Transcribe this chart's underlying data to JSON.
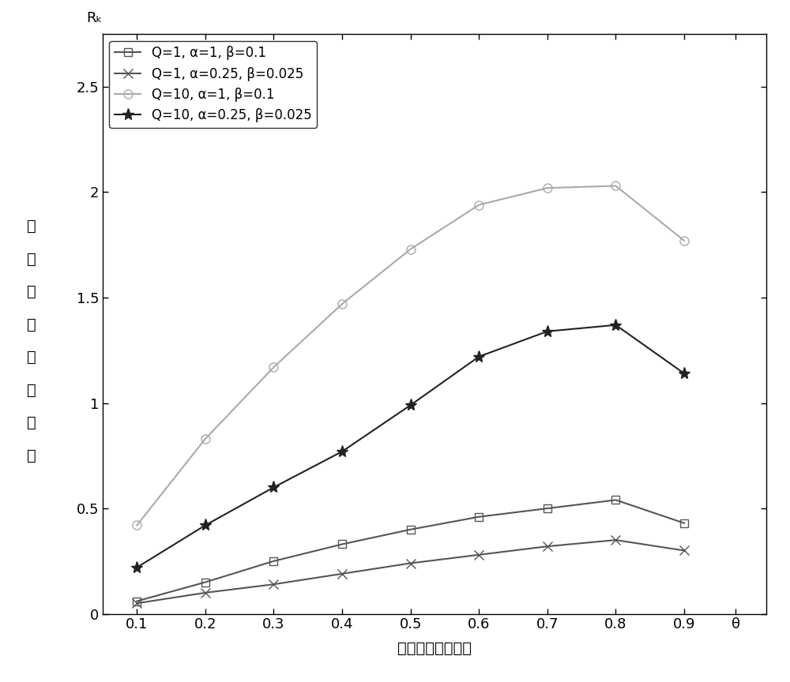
{
  "x": [
    0.1,
    0.2,
    0.3,
    0.4,
    0.5,
    0.6,
    0.7,
    0.8,
    0.9
  ],
  "series": [
    {
      "label": "Q=1, α=1, β=0.1",
      "y": [
        0.06,
        0.15,
        0.25,
        0.33,
        0.4,
        0.46,
        0.5,
        0.54,
        0.43
      ],
      "color": "#555555",
      "marker": "s",
      "markersize": 7,
      "markerfacecolor": "none",
      "markeredgecolor": "#555555",
      "linewidth": 1.5,
      "linestyle": "-"
    },
    {
      "label": "Q=1, α=0.25, β=0.025",
      "y": [
        0.05,
        0.1,
        0.14,
        0.19,
        0.24,
        0.28,
        0.32,
        0.35,
        0.3
      ],
      "color": "#555555",
      "marker": "x",
      "markersize": 8,
      "markerfacecolor": "none",
      "markeredgecolor": "#555555",
      "linewidth": 1.5,
      "linestyle": "-"
    },
    {
      "label": "Q=10, α=1, β=0.1",
      "y": [
        0.42,
        0.83,
        1.17,
        1.47,
        1.73,
        1.94,
        2.02,
        2.03,
        1.77
      ],
      "color": "#aaaaaa",
      "marker": "o",
      "markersize": 8,
      "markerfacecolor": "none",
      "markeredgecolor": "#aaaaaa",
      "linewidth": 1.5,
      "linestyle": "-"
    },
    {
      "label": "Q=10, α=0.25, β=0.025",
      "y": [
        0.22,
        0.42,
        0.6,
        0.77,
        0.99,
        1.22,
        1.34,
        1.37,
        1.14
      ],
      "color": "#222222",
      "marker": "*",
      "markersize": 11,
      "markerfacecolor": "#222222",
      "markeredgecolor": "#222222",
      "linewidth": 1.5,
      "linestyle": "-"
    }
  ],
  "xlabel": "服务商的决策阈値",
  "ylabel_chars": [
    "运",
    "营",
    "商",
    "的",
    "最",
    "优",
    "效",
    "益"
  ],
  "ylabel_top": "Rₖ",
  "xtick_labels": [
    "0.1",
    "0.2",
    "0.3",
    "0.4",
    "0.5",
    "0.6",
    "0.7",
    "0.8",
    "0.9",
    "θ"
  ],
  "xtick_values": [
    0.1,
    0.2,
    0.3,
    0.4,
    0.5,
    0.6,
    0.7,
    0.8,
    0.9,
    0.975
  ],
  "ytick_values": [
    0,
    0.5,
    1,
    1.5,
    2,
    2.5
  ],
  "xlim": [
    0.05,
    1.02
  ],
  "ylim": [
    0,
    2.75
  ],
  "legend_loc": "upper left",
  "font_size_label": 14,
  "font_size_tick": 13,
  "font_size_legend": 12,
  "background_color": "#ffffff"
}
